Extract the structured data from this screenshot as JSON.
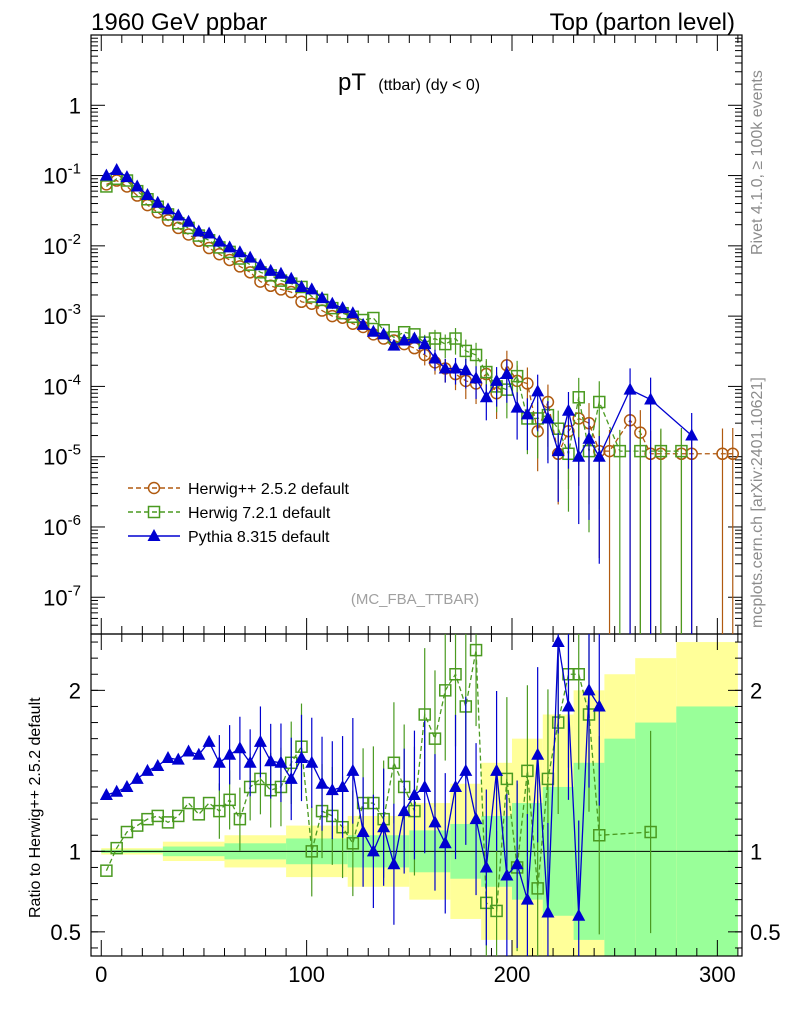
{
  "header": {
    "left": "1960 GeV ppbar",
    "right": "Top (parton level)"
  },
  "side_labels": {
    "rivet": "Rivet 4.1.0, ≥ 100k events",
    "mcplots": "mcplots.cern.ch [arXiv:2401.10621]"
  },
  "chart_data": {
    "type": "line",
    "title_main": "pT",
    "title_sub": "(ttbar) (dy < 0)",
    "analysis": "(MC_FBA_TTBAR)",
    "xlabel": "",
    "ylabel_ratio": "Ratio to Herwig++ 2.5.2 default",
    "xlim": [
      -5,
      312
    ],
    "ylim_main": [
      3e-08,
      10
    ],
    "ylim_ratio": [
      0.35,
      2.35
    ],
    "yscale_main": "log",
    "xticks": [
      0,
      100,
      200,
      300
    ],
    "yticks_main": [
      {
        "value": 1,
        "label": "1"
      },
      {
        "value": 0.1,
        "label": "10^-1"
      },
      {
        "value": 0.01,
        "label": "10^-2"
      },
      {
        "value": 0.001,
        "label": "10^-3"
      },
      {
        "value": 0.0001,
        "label": "10^-4"
      },
      {
        "value": 1e-05,
        "label": "10^-5"
      },
      {
        "value": 1e-06,
        "label": "10^-6"
      },
      {
        "value": 1e-07,
        "label": "10^-7"
      }
    ],
    "yticks_ratio": [
      {
        "value": 0.5,
        "label": "0.5"
      },
      {
        "value": 1,
        "label": "1"
      },
      {
        "value": 2,
        "label": "2"
      }
    ],
    "legend_position": "lower-left",
    "series": [
      {
        "name": "Herwig++ 2.5.2 default",
        "color": "#b05a10",
        "marker": "circle",
        "x": [
          2.5,
          7.5,
          12.5,
          17.5,
          22.5,
          27.5,
          32.5,
          37.5,
          42.5,
          47.5,
          52.5,
          57.5,
          62.5,
          67.5,
          72.5,
          77.5,
          82.5,
          87.5,
          92.5,
          97.5,
          102.5,
          107.5,
          112.5,
          117.5,
          122.5,
          127.5,
          132.5,
          137.5,
          142.5,
          147.5,
          152.5,
          157.5,
          162.5,
          167.5,
          172.5,
          177.5,
          182.5,
          187.5,
          192.5,
          197.5,
          202.5,
          207.5,
          212.5,
          217.5,
          222.5,
          227.5,
          232.5,
          237.5,
          242.5,
          247.5,
          257.5,
          262.5,
          267.5,
          272.5,
          282.5,
          287.5,
          302.5,
          307.5
        ],
        "y": [
          0.075,
          0.085,
          0.07,
          0.052,
          0.038,
          0.03,
          0.023,
          0.018,
          0.0145,
          0.0118,
          0.0093,
          0.0076,
          0.0063,
          0.0051,
          0.0042,
          0.0031,
          0.0027,
          0.0024,
          0.0022,
          0.0016,
          0.0015,
          0.0012,
          0.001,
          0.00095,
          0.00078,
          0.0007,
          0.00055,
          0.00048,
          0.00045,
          0.0004,
          0.00035,
          0.00028,
          0.00022,
          0.00018,
          0.00015,
          0.00012,
          0.00011,
          0.00015,
          8e-05,
          0.0002,
          0.00012,
          0.00011,
          2.3e-05,
          6e-05,
          1.1e-05,
          2.3e-05,
          3.5e-05,
          3e-05,
          1.2e-05,
          1.2e-05,
          3.3e-05,
          2.2e-05,
          1.1e-05,
          1.1e-05,
          1.1e-05,
          1.1e-05,
          1.1e-05,
          1.1e-05
        ]
      },
      {
        "name": "Herwig 7.2.1 default",
        "color": "#4a9a20",
        "marker": "square",
        "x": [
          2.5,
          7.5,
          12.5,
          17.5,
          22.5,
          27.5,
          32.5,
          37.5,
          42.5,
          47.5,
          52.5,
          57.5,
          62.5,
          67.5,
          72.5,
          77.5,
          82.5,
          87.5,
          92.5,
          97.5,
          102.5,
          107.5,
          112.5,
          117.5,
          122.5,
          127.5,
          132.5,
          137.5,
          142.5,
          147.5,
          152.5,
          157.5,
          162.5,
          167.5,
          172.5,
          177.5,
          182.5,
          187.5,
          192.5,
          197.5,
          202.5,
          207.5,
          212.5,
          217.5,
          222.5,
          227.5,
          232.5,
          237.5,
          242.5,
          252.5,
          262.5,
          272.5,
          282.5
        ],
        "y": [
          0.07,
          0.09,
          0.085,
          0.06,
          0.046,
          0.036,
          0.028,
          0.021,
          0.018,
          0.014,
          0.012,
          0.0095,
          0.0082,
          0.0066,
          0.0054,
          0.0042,
          0.0038,
          0.0032,
          0.0029,
          0.0026,
          0.0019,
          0.0017,
          0.0013,
          0.0011,
          0.00098,
          0.00088,
          0.00094,
          0.00063,
          0.0005,
          0.00059,
          0.00055,
          0.00042,
          0.00048,
          0.0004,
          0.00048,
          0.00032,
          0.00028,
          0.00016,
          0.0001,
          9e-05,
          0.00014,
          3.5e-05,
          3.5e-05,
          3.9e-05,
          2.5e-05,
          1.1e-05,
          7e-05,
          1.2e-05,
          6e-05,
          1.2e-05,
          1.2e-05,
          1.2e-05,
          1.2e-05
        ]
      },
      {
        "name": "Pythia 8.315 default",
        "color": "#0000d0",
        "marker": "triangle",
        "x": [
          2.5,
          7.5,
          12.5,
          17.5,
          22.5,
          27.5,
          32.5,
          37.5,
          42.5,
          47.5,
          52.5,
          57.5,
          62.5,
          67.5,
          72.5,
          77.5,
          82.5,
          87.5,
          92.5,
          97.5,
          102.5,
          107.5,
          112.5,
          117.5,
          122.5,
          127.5,
          132.5,
          137.5,
          142.5,
          147.5,
          152.5,
          157.5,
          162.5,
          167.5,
          172.5,
          177.5,
          182.5,
          187.5,
          192.5,
          197.5,
          202.5,
          207.5,
          212.5,
          217.5,
          222.5,
          227.5,
          232.5,
          237.5,
          242.5,
          257.5,
          267.5,
          287.5
        ],
        "y": [
          0.1,
          0.12,
          0.095,
          0.07,
          0.053,
          0.041,
          0.033,
          0.027,
          0.022,
          0.016,
          0.015,
          0.0115,
          0.0095,
          0.0081,
          0.0068,
          0.0053,
          0.0044,
          0.004,
          0.0034,
          0.0026,
          0.0024,
          0.0018,
          0.0015,
          0.0013,
          0.0011,
          0.00075,
          0.0006,
          0.00055,
          0.00038,
          0.00045,
          0.00048,
          0.0004,
          0.00025,
          0.00018,
          0.00018,
          0.00017,
          0.00013,
          7e-05,
          0.00012,
          0.00015,
          5e-05,
          4e-05,
          8.5e-05,
          3.5e-05,
          1.2e-05,
          4.5e-05,
          1e-05,
          1.8e-05,
          1e-05,
          9e-05,
          6.5e-05,
          2e-05
        ]
      }
    ],
    "ratio_series": [
      {
        "name": "Herwig 7.2.1 default",
        "x": [
          2.5,
          7.5,
          12.5,
          17.5,
          22.5,
          27.5,
          32.5,
          37.5,
          42.5,
          47.5,
          52.5,
          57.5,
          62.5,
          67.5,
          72.5,
          77.5,
          82.5,
          87.5,
          92.5,
          97.5,
          102.5,
          107.5,
          112.5,
          117.5,
          122.5,
          127.5,
          132.5,
          137.5,
          142.5,
          147.5,
          152.5,
          157.5,
          162.5,
          167.5,
          172.5,
          177.5,
          182.5,
          187.5,
          192.5,
          197.5,
          202.5,
          207.5,
          212.5,
          217.5,
          222.5,
          227.5,
          232.5,
          237.5,
          242.5,
          267.5
        ],
        "y": [
          0.88,
          1.02,
          1.12,
          1.16,
          1.2,
          1.22,
          1.18,
          1.22,
          1.3,
          1.23,
          1.3,
          1.25,
          1.32,
          1.2,
          1.4,
          1.45,
          1.38,
          1.4,
          1.55,
          1.65,
          1.0,
          1.25,
          1.22,
          1.15,
          1.05,
          1.3,
          1.3,
          1.2,
          1.55,
          1.4,
          1.25,
          1.85,
          1.7,
          2.0,
          2.1,
          1.9,
          2.25,
          0.68,
          0.63,
          1.45,
          0.9,
          1.5,
          0.77,
          1.45,
          1.8,
          2.1,
          2.1,
          1.85,
          1.1,
          1.12
        ]
      },
      {
        "name": "Pythia 8.315 default",
        "x": [
          2.5,
          7.5,
          12.5,
          17.5,
          22.5,
          27.5,
          32.5,
          37.5,
          42.5,
          47.5,
          52.5,
          57.5,
          62.5,
          67.5,
          72.5,
          77.5,
          82.5,
          87.5,
          92.5,
          97.5,
          102.5,
          107.5,
          112.5,
          117.5,
          122.5,
          127.5,
          132.5,
          137.5,
          142.5,
          147.5,
          152.5,
          157.5,
          162.5,
          167.5,
          172.5,
          177.5,
          182.5,
          187.5,
          192.5,
          197.5,
          202.5,
          207.5,
          212.5,
          217.5,
          222.5,
          227.5,
          232.5,
          237.5,
          242.5
        ],
        "y": [
          1.35,
          1.37,
          1.4,
          1.45,
          1.5,
          1.53,
          1.58,
          1.57,
          1.62,
          1.6,
          1.68,
          1.55,
          1.6,
          1.64,
          1.55,
          1.68,
          1.56,
          1.55,
          1.45,
          1.58,
          1.55,
          1.42,
          1.38,
          1.4,
          1.5,
          1.12,
          1.0,
          1.15,
          0.92,
          1.25,
          1.35,
          1.4,
          1.18,
          1.05,
          1.4,
          1.5,
          1.2,
          0.9,
          1.5,
          0.85,
          0.92,
          0.7,
          1.6,
          0.62,
          2.3,
          1.9,
          0.6,
          2.0,
          1.9
        ]
      }
    ],
    "band_relative_error_edges": [
      0,
      30,
      60,
      90,
      120,
      150,
      170,
      185,
      200,
      215,
      230,
      245,
      260,
      280,
      310
    ],
    "band_green_halfwidth": [
      0.01,
      0.03,
      0.05,
      0.08,
      0.1,
      0.13,
      0.17,
      0.22,
      0.3,
      0.4,
      0.55,
      0.7,
      0.8,
      0.9
    ],
    "band_yellow_halfwidth": [
      0.02,
      0.06,
      0.1,
      0.16,
      0.22,
      0.3,
      0.42,
      0.55,
      0.7,
      0.85,
      1.0,
      1.1,
      1.2,
      1.3
    ]
  }
}
